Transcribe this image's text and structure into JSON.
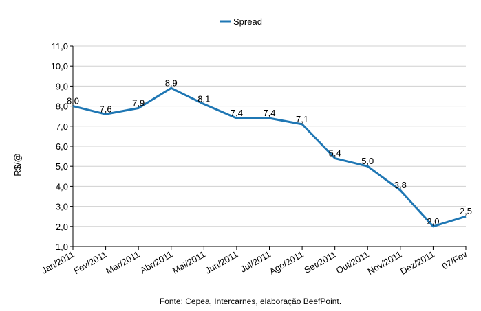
{
  "chart_data": {
    "type": "line",
    "categories": [
      "Jan/2011",
      "Fev/2011",
      "Mar/2011",
      "Abr/2011",
      "Mai/2011",
      "Jun/2011",
      "Jul/2011",
      "Ago/2011",
      "Set/2011",
      "Out/2011",
      "Nov/2011",
      "Dez/2011",
      "07/Fev"
    ],
    "series": [
      {
        "name": "Spread",
        "values": [
          8.0,
          7.6,
          7.9,
          8.9,
          8.1,
          7.4,
          7.4,
          7.1,
          5.4,
          5.0,
          3.8,
          2.0,
          2.5
        ],
        "data_labels": [
          "8,0",
          "7,6",
          "7,9",
          "8,9",
          "8,1",
          "7,4",
          "7,4",
          "7,1",
          "5,4",
          "5,0",
          "3,8",
          "2,0",
          "2,5"
        ],
        "color": "#1f77b4"
      }
    ],
    "ylabel": "R$/@",
    "xlabel": "",
    "ylim": [
      1.0,
      11.0
    ],
    "yticks": [
      1.0,
      2.0,
      3.0,
      4.0,
      5.0,
      6.0,
      7.0,
      8.0,
      9.0,
      10.0,
      11.0
    ],
    "ytick_labels": [
      "1,0",
      "2,0",
      "3,0",
      "4,0",
      "5,0",
      "6,0",
      "7,0",
      "8,0",
      "9,0",
      "10,0",
      "11,0"
    ],
    "grid": true,
    "legend_position": "top-center",
    "source": "Fonte: Cepea, Intercarnes, elaboração BeefPoint."
  }
}
